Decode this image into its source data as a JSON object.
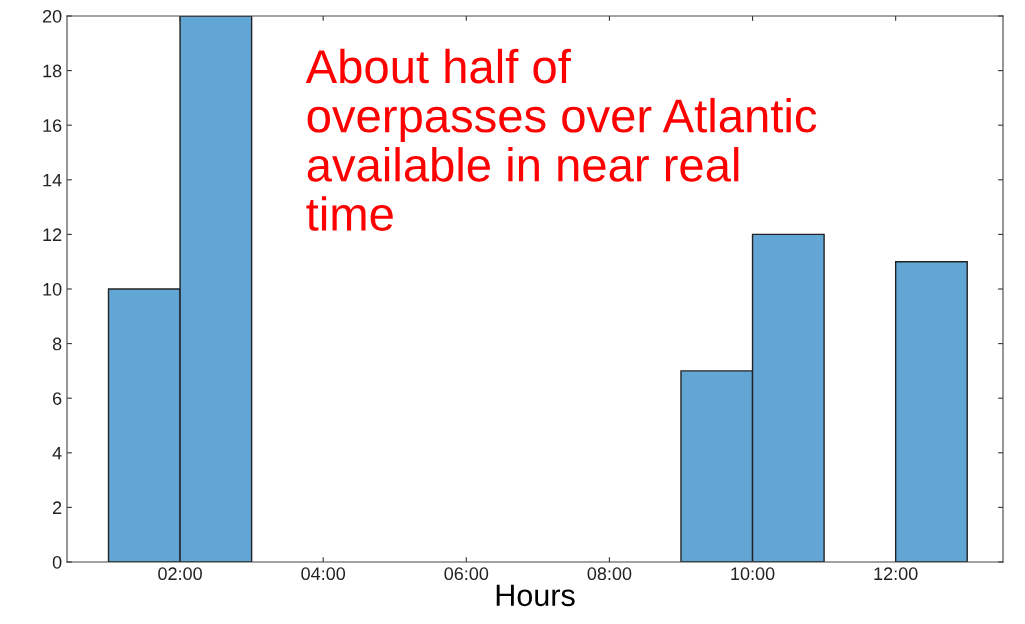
{
  "chart_data": {
    "type": "histogram",
    "xlabel": "Hours",
    "bins": [
      1,
      2,
      3,
      4,
      5,
      6,
      7,
      8,
      9,
      10,
      11,
      12,
      13
    ],
    "values": [
      10,
      20,
      0,
      0,
      0,
      0,
      0,
      0,
      7,
      12,
      0,
      11
    ],
    "color": "#62a6d6",
    "xlim": [
      0.42,
      13.5
    ],
    "xticks": [
      {
        "value": 2,
        "label": "02:00"
      },
      {
        "value": 4,
        "label": "04:00"
      },
      {
        "value": 6,
        "label": "06:00"
      },
      {
        "value": 8,
        "label": "08:00"
      },
      {
        "value": 10,
        "label": "10:00"
      },
      {
        "value": 12,
        "label": "12:00"
      }
    ],
    "ylim": [
      0,
      20
    ],
    "yticks": [
      0,
      2,
      4,
      6,
      8,
      10,
      12,
      14,
      16,
      18,
      20
    ],
    "grid": false,
    "annotations": [
      "About half of\noverpasses over Atlantic\navailable in near real\ntime"
    ]
  }
}
